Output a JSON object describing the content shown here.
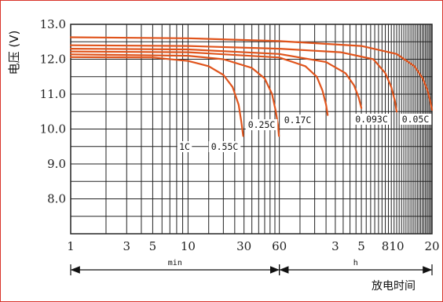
{
  "chart_data": {
    "type": "line",
    "ylabel": "电压 (V)",
    "xlabel": "放电时间",
    "yticks": [
      "13.0",
      "12.0",
      "11.0",
      "10.0",
      "9.0",
      "8.0"
    ],
    "ylim": [
      7.0,
      13.0
    ],
    "x_ticks": [
      {
        "label": "1",
        "minutes": 1
      },
      {
        "label": "3",
        "minutes": 3
      },
      {
        "label": "5",
        "minutes": 5
      },
      {
        "label": "10",
        "minutes": 10
      },
      {
        "label": "30",
        "minutes": 30
      },
      {
        "label": "60",
        "minutes": 60
      },
      {
        "label": "3",
        "minutes": 180
      },
      {
        "label": "5",
        "minutes": 300
      },
      {
        "label": "8",
        "minutes": 480
      },
      {
        "label": "10",
        "minutes": 600
      },
      {
        "label": "20",
        "minutes": 1200
      }
    ],
    "x_segments": [
      {
        "label": "min",
        "from_minutes": 1,
        "to_minutes": 60
      },
      {
        "label": "h",
        "from_minutes": 60,
        "to_minutes": 1200
      }
    ],
    "grid": true,
    "colors": {
      "curve": "#e0541c",
      "grid": "#222222",
      "frame": "#d9342b"
    },
    "series": [
      {
        "name": "1C",
        "points": [
          [
            1,
            12.06
          ],
          [
            5,
            12.05
          ],
          [
            10,
            11.95
          ],
          [
            15,
            11.8
          ],
          [
            20,
            11.55
          ],
          [
            24,
            11.2
          ],
          [
            27,
            10.7
          ],
          [
            28.5,
            10.2
          ],
          [
            29.5,
            9.8
          ]
        ]
      },
      {
        "name": "0.55C",
        "points": [
          [
            1,
            12.14
          ],
          [
            10,
            12.1
          ],
          [
            20,
            12.0
          ],
          [
            35,
            11.75
          ],
          [
            45,
            11.45
          ],
          [
            52,
            11.0
          ],
          [
            56,
            10.5
          ],
          [
            58.5,
            10.1
          ],
          [
            59.5,
            9.8
          ]
        ]
      },
      {
        "name": "0.25C",
        "points": [
          [
            1,
            12.22
          ],
          [
            10,
            12.2
          ],
          [
            60,
            12.05
          ],
          [
            100,
            11.8
          ],
          [
            125,
            11.5
          ],
          [
            140,
            11.1
          ],
          [
            150,
            10.7
          ],
          [
            155,
            10.4
          ]
        ]
      },
      {
        "name": "0.17C",
        "points": [
          [
            1,
            12.3
          ],
          [
            10,
            12.28
          ],
          [
            60,
            12.15
          ],
          [
            150,
            11.92
          ],
          [
            220,
            11.6
          ],
          [
            260,
            11.25
          ],
          [
            285,
            10.9
          ],
          [
            300,
            10.6
          ]
        ]
      },
      {
        "name": "0.093C",
        "points": [
          [
            1,
            12.4
          ],
          [
            10,
            12.38
          ],
          [
            60,
            12.3
          ],
          [
            200,
            12.2
          ],
          [
            380,
            12.0
          ],
          [
            480,
            11.6
          ],
          [
            540,
            11.2
          ],
          [
            580,
            10.8
          ],
          [
            600,
            10.5
          ]
        ]
      },
      {
        "name": "0.05C",
        "points": [
          [
            1,
            12.63
          ],
          [
            10,
            12.6
          ],
          [
            60,
            12.52
          ],
          [
            300,
            12.38
          ],
          [
            600,
            12.15
          ],
          [
            850,
            11.8
          ],
          [
            1000,
            11.45
          ],
          [
            1100,
            11.1
          ],
          [
            1160,
            10.8
          ],
          [
            1200,
            10.55
          ]
        ]
      }
    ]
  }
}
